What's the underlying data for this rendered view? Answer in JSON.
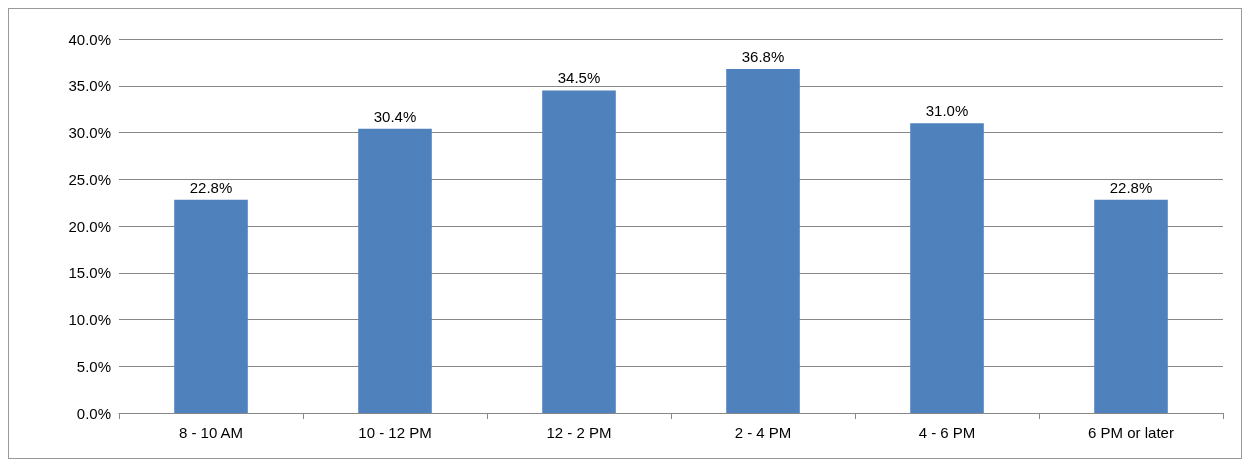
{
  "chart_data": {
    "type": "bar",
    "categories": [
      "8 - 10 AM",
      "10 - 12 PM",
      "12 - 2 PM",
      "2 - 4 PM",
      "4 - 6 PM",
      "6 PM or later"
    ],
    "values": [
      22.8,
      30.4,
      34.5,
      36.8,
      31.0,
      22.8
    ],
    "value_labels": [
      "22.8%",
      "30.4%",
      "34.5%",
      "36.8%",
      "31.0%",
      "22.8%"
    ],
    "color": "#4f81bd",
    "ylim": [
      0,
      40
    ],
    "yticks": [
      {
        "value": 0,
        "label": "0.0%"
      },
      {
        "value": 5,
        "label": "5.0%"
      },
      {
        "value": 10,
        "label": "10.0%"
      },
      {
        "value": 15,
        "label": "15.0%"
      },
      {
        "value": 20,
        "label": "20.0%"
      },
      {
        "value": 25,
        "label": "25.0%"
      },
      {
        "value": 30,
        "label": "30.0%"
      },
      {
        "value": 35,
        "label": "35.0%"
      },
      {
        "value": 40,
        "label": "40.0%"
      }
    ],
    "grid": "y"
  }
}
